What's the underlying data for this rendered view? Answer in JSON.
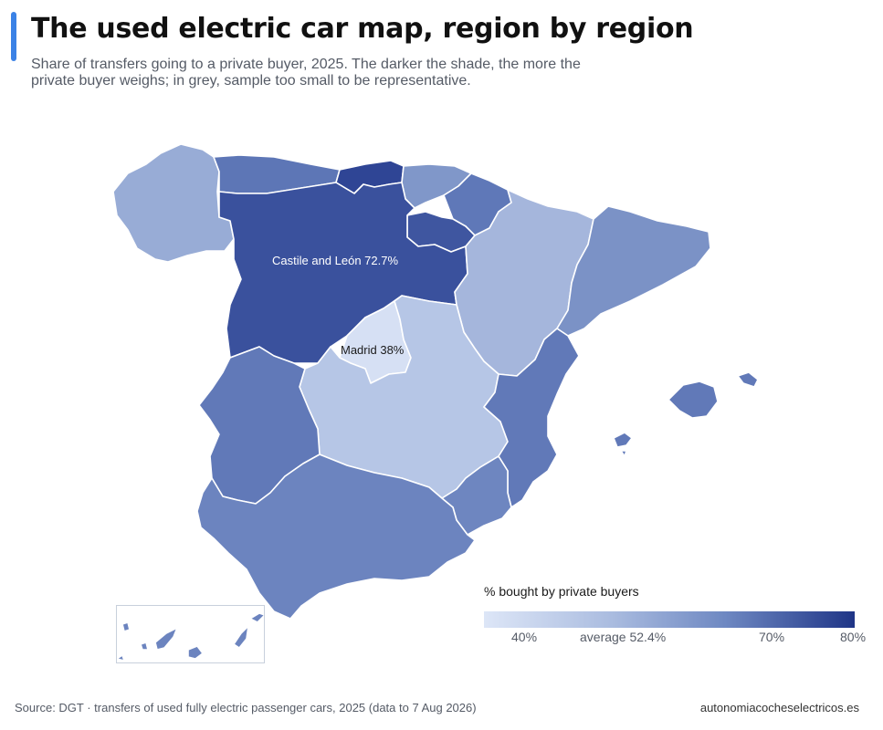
{
  "header": {
    "title": "The used electric car map, region by region",
    "subtitle": "Share of transfers going to a private buyer, 2025. The darker the shade, the more the private buyer weighs; in grey, sample too small to be representative."
  },
  "map": {
    "annotations": {
      "castile_leon": "Castile and León 72.7%",
      "madrid": "Madrid 38%"
    },
    "regions": {
      "galicia": {
        "color": "#98acd6"
      },
      "asturias": {
        "color": "#5d76b6"
      },
      "cantabria": {
        "color": "#2f4595"
      },
      "basque_country": {
        "color": "#8097c9"
      },
      "navarre": {
        "color": "#5f78b8"
      },
      "la_rioja": {
        "color": "#3f56a0"
      },
      "castile_leon": {
        "color": "#3a519d"
      },
      "aragon": {
        "color": "#a5b6dc"
      },
      "catalonia": {
        "color": "#7b92c6"
      },
      "madrid": {
        "color": "#d6e0f4"
      },
      "castilla_la_mancha": {
        "color": "#b6c6e6"
      },
      "extremadura": {
        "color": "#6179b8"
      },
      "valencia": {
        "color": "#6179b8"
      },
      "murcia": {
        "color": "#6e86c0"
      },
      "andalusia": {
        "color": "#6c84bf"
      },
      "balearic_islands": {
        "color": "#6179b8"
      },
      "canary_islands": {
        "color": "#6c84bf"
      }
    }
  },
  "legend": {
    "title": "% bought by private buyers",
    "ticks": [
      "40%",
      "average 52.4%",
      "70%",
      "80%"
    ]
  },
  "footer": {
    "source": "Source: DGT · transfers of used fully electric passenger cars, 2025 (data to 7 Aug 2026)",
    "website": "autonomiacocheselectricos.es"
  }
}
